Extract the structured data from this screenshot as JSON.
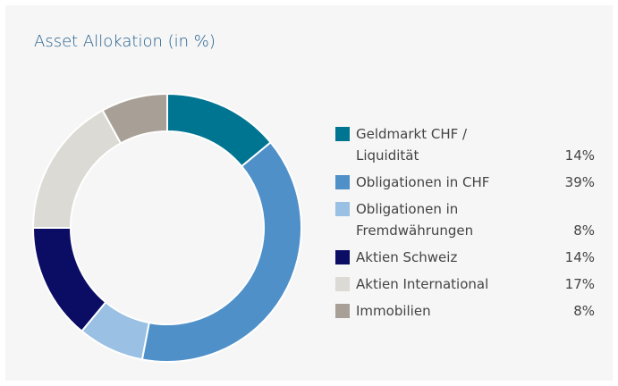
{
  "chart_data": {
    "type": "donut",
    "title": "Asset Allokation (in %)",
    "categories": [
      "Geldmarkt CHF / Liquidität",
      "Obligationen in CHF",
      "Obligationen in Fremdwährungen",
      "Aktien Schweiz",
      "Aktien International",
      "Immobilien"
    ],
    "values": [
      14,
      39,
      8,
      14,
      17,
      8
    ],
    "value_labels": [
      "14%",
      "39%",
      "8%",
      "14%",
      "17%",
      "8%"
    ],
    "colors": [
      "#007592",
      "#4f90c9",
      "#9ac1e3",
      "#0b0c64",
      "#dcdad4",
      "#a8a097"
    ]
  }
}
